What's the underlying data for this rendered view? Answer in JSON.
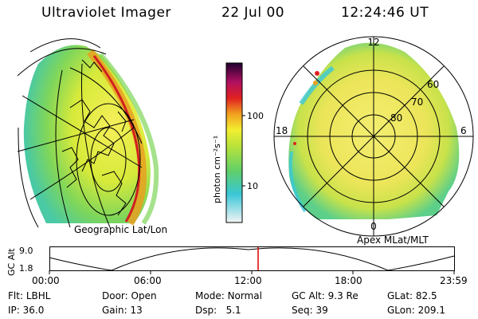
{
  "header": {
    "title": "Ultraviolet Imager",
    "date": "22 Jul 00",
    "time": "12:24:46 UT"
  },
  "colorbar": {
    "label": "photon cm⁻²s⁻¹",
    "ticks": [
      "100",
      "10"
    ]
  },
  "left_panel": {
    "caption": "Geographic Lat/Lon"
  },
  "right_panel": {
    "caption": "Apex MLat/MLT",
    "mlt_labels": {
      "top": "12",
      "left": "18",
      "right": "6",
      "bottom": "0"
    },
    "lat_labels": [
      "60",
      "70",
      "80"
    ]
  },
  "timeline": {
    "ylabel": "GC Alt",
    "ymax": "9.0",
    "ymin": "1.8",
    "ticks": [
      "00:00",
      "06:00",
      "12:00",
      "18:00",
      "23:59"
    ]
  },
  "info": {
    "row1": [
      {
        "key": "Flt:",
        "value": "LBHL"
      },
      {
        "key": "Door:",
        "value": "Open"
      },
      {
        "key": "Mode:",
        "value": "Normal"
      },
      {
        "key": "GC Alt:",
        "value": "9.3 Re"
      },
      {
        "key": "GLat:",
        "value": "82.5"
      }
    ],
    "row2": [
      {
        "key": "IP:",
        "value": "36.0"
      },
      {
        "key": "Gain:",
        "value": "13"
      },
      {
        "key": "Dsp:",
        "value": "5.1"
      },
      {
        "key": "Seq:",
        "value": "39"
      },
      {
        "key": "GLon:",
        "value": "209.1"
      }
    ]
  },
  "colors": {
    "marker": "#e00000"
  }
}
